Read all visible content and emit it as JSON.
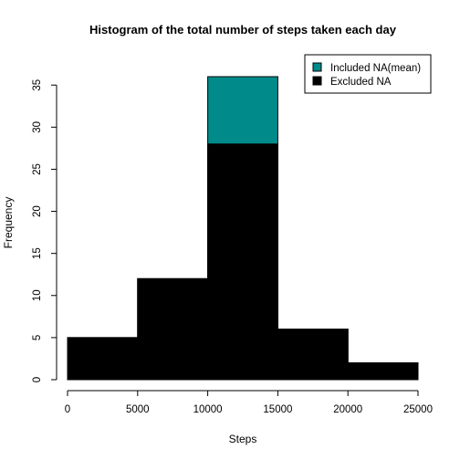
{
  "chart_data": {
    "type": "bar",
    "title": "Histogram of the total number of steps taken each day",
    "xlabel": "Steps",
    "ylabel": "Frequency",
    "xlim": [
      0,
      25000
    ],
    "ylim": [
      0,
      36
    ],
    "x_ticks": [
      0,
      5000,
      10000,
      15000,
      20000,
      25000
    ],
    "y_ticks": [
      0,
      5,
      10,
      15,
      20,
      25,
      30,
      35
    ],
    "bins": [
      {
        "from": 0,
        "to": 5000
      },
      {
        "from": 5000,
        "to": 10000
      },
      {
        "from": 10000,
        "to": 15000
      },
      {
        "from": 15000,
        "to": 20000
      },
      {
        "from": 20000,
        "to": 25000
      }
    ],
    "series": [
      {
        "name": "Included NA(mean)",
        "color": "#008B8B",
        "values": [
          5,
          12,
          36,
          6,
          2
        ]
      },
      {
        "name": "Excluded NA",
        "color": "#000000",
        "values": [
          5,
          12,
          28,
          6,
          2
        ]
      }
    ],
    "legend": {
      "position": "top-right"
    },
    "grid": false
  }
}
